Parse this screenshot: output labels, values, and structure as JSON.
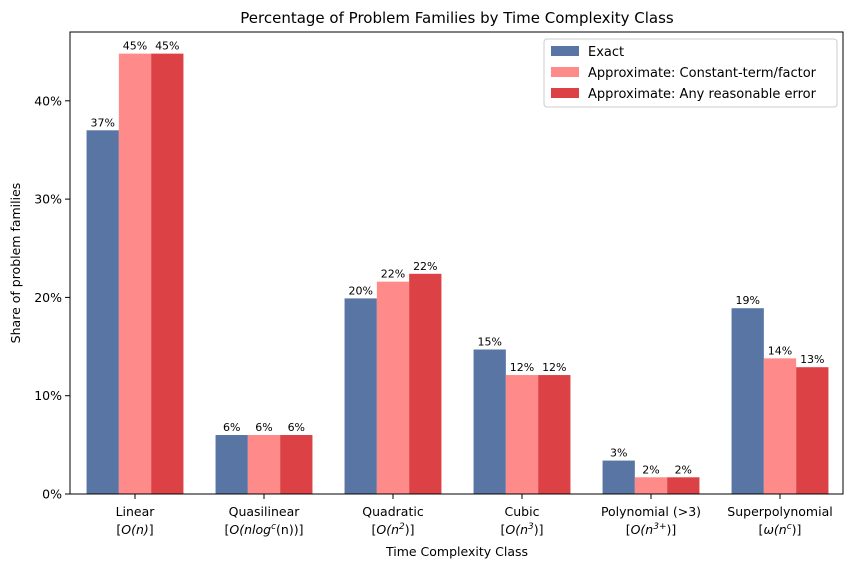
{
  "chart_data": {
    "type": "bar",
    "title": "Percentage of Problem Families by Time Complexity Class",
    "xlabel": "Time Complexity Class",
    "ylabel": "Share of problem families",
    "ylim": [
      0,
      47
    ],
    "yticks": [
      0,
      10,
      20,
      30,
      40
    ],
    "ytick_labels": [
      "0%",
      "10%",
      "20%",
      "30%",
      "40%"
    ],
    "legend_position": "top-right",
    "grid": false,
    "categories": [
      {
        "line1": "Linear",
        "pre": "[",
        "math": "O(n)",
        "sup": "",
        "post": "]"
      },
      {
        "line1": "Quasilinear",
        "pre": "[",
        "math": "O(nlog",
        "sup": "c",
        "post": "(n))]"
      },
      {
        "line1": "Quadratic",
        "pre": "[",
        "math": "O(n",
        "sup": "2",
        "post": ")]"
      },
      {
        "line1": "Cubic",
        "pre": "[",
        "math": "O(n",
        "sup": "3",
        "post": ")]"
      },
      {
        "line1": "Polynomial (>3)",
        "pre": "[",
        "math": "O(n",
        "sup": "3+",
        "post": ")]"
      },
      {
        "line1": "Superpolynomial",
        "pre": "[",
        "math": "ω(n",
        "sup": "c",
        "post": ")]"
      }
    ],
    "series": [
      {
        "name": "Exact",
        "color": "#5875a4",
        "values": [
          37.0,
          6.0,
          19.9,
          14.7,
          3.4,
          18.9
        ],
        "labels": [
          "37%",
          "6%",
          "20%",
          "15%",
          "3%",
          "19%"
        ]
      },
      {
        "name": "Approximate: Constant-term/factor",
        "color": "#ff8a8a",
        "values": [
          44.8,
          6.0,
          21.6,
          12.1,
          1.7,
          13.8
        ],
        "labels": [
          "45%",
          "6%",
          "22%",
          "12%",
          "2%",
          "14%"
        ]
      },
      {
        "name": "Approximate: Any reasonable error",
        "color": "#dc4145",
        "values": [
          44.8,
          6.0,
          22.4,
          12.1,
          1.7,
          12.9
        ],
        "labels": [
          "45%",
          "6%",
          "22%",
          "12%",
          "2%",
          "13%"
        ]
      }
    ]
  }
}
